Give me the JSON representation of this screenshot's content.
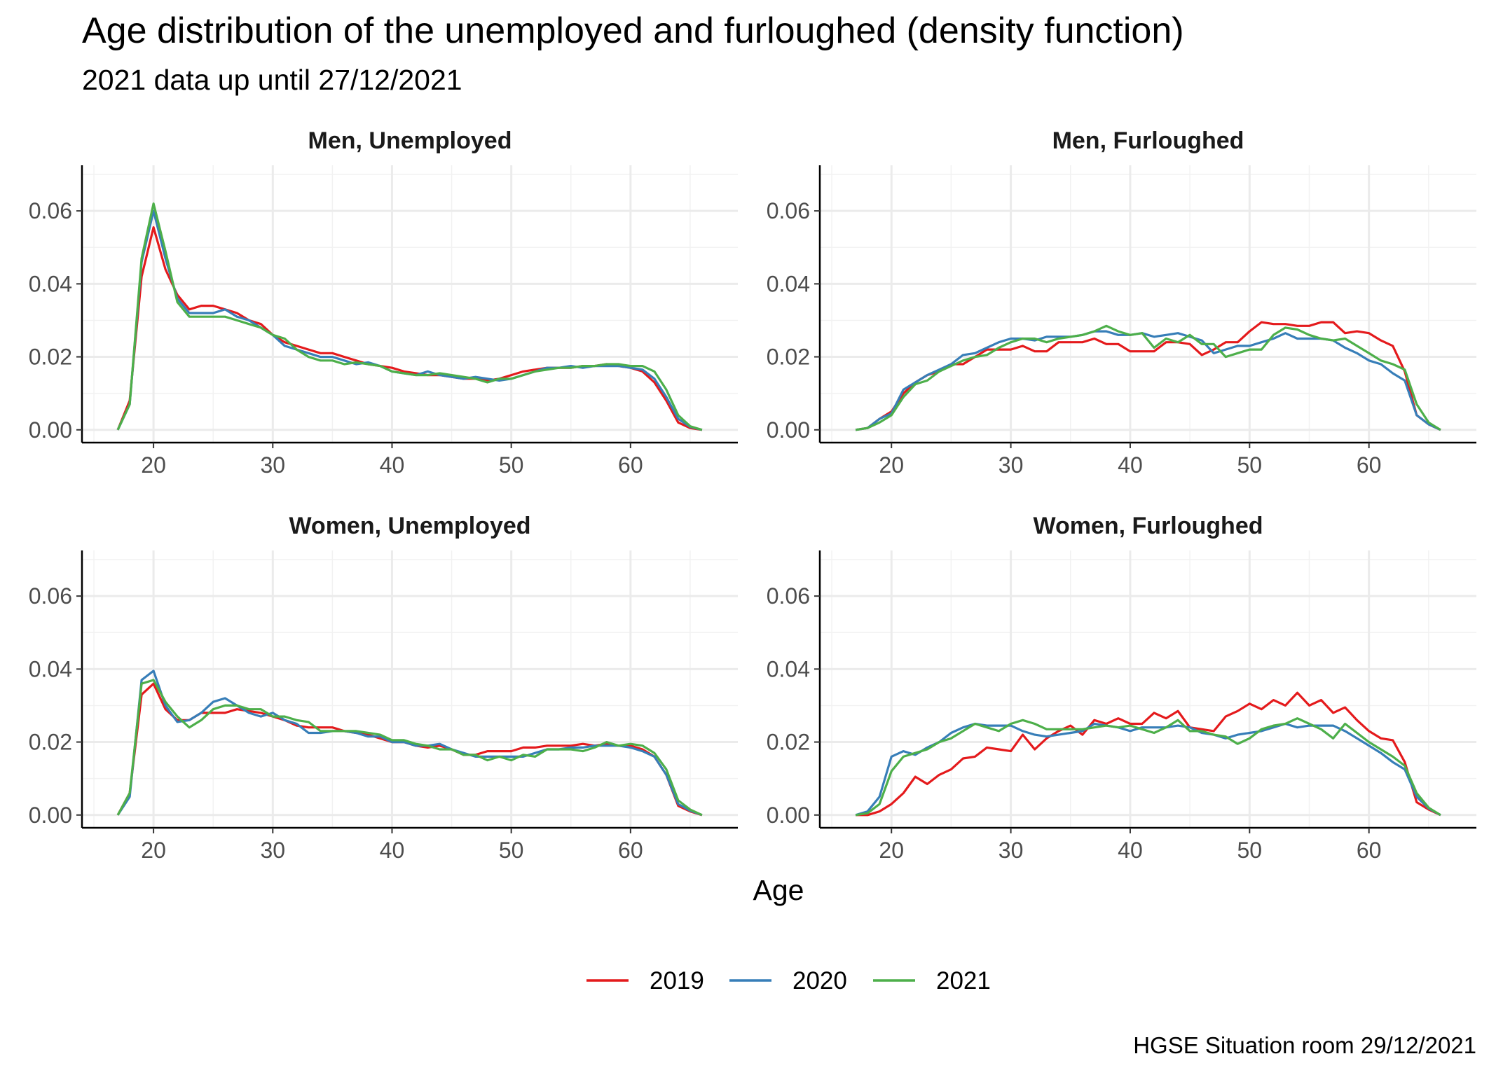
{
  "title": "Age distribution of the unemployed and furloughed (density function)",
  "subtitle": "2021 data up until 27/12/2021",
  "caption": "HGSE Situation room 29/12/2021",
  "colors": {
    "2019": "#e41a1c",
    "2020": "#377eb8",
    "2021": "#4daf4a"
  },
  "chart_data": {
    "type": "line",
    "xlabel": "Age",
    "ylabel": "",
    "xlim": [
      14,
      69
    ],
    "ylim": [
      -0.0035,
      0.0725
    ],
    "x_ticks": [
      20,
      30,
      40,
      50,
      60
    ],
    "x_tick_labels": [
      "20",
      "30",
      "40",
      "50",
      "60"
    ],
    "y_ticks": [
      0,
      0.02,
      0.04,
      0.06
    ],
    "y_tick_labels": [
      "0.00",
      "0.02",
      "0.04",
      "0.06"
    ],
    "grid": true,
    "legend_position": "bottom",
    "legend": [
      "2019",
      "2020",
      "2021"
    ],
    "x": [
      17,
      18,
      19,
      20,
      21,
      22,
      23,
      24,
      25,
      26,
      27,
      28,
      29,
      30,
      31,
      32,
      33,
      34,
      35,
      36,
      37,
      38,
      39,
      40,
      41,
      42,
      43,
      44,
      45,
      46,
      47,
      48,
      49,
      50,
      51,
      52,
      53,
      54,
      55,
      56,
      57,
      58,
      59,
      60,
      61,
      62,
      63,
      64,
      65,
      66
    ],
    "panels": [
      {
        "title": "Men, Unemployed",
        "series": [
          {
            "name": "2019",
            "values": [
              0,
              0.008,
              0.042,
              0.0555,
              0.044,
              0.037,
              0.033,
              0.034,
              0.034,
              0.033,
              0.032,
              0.03,
              0.029,
              0.026,
              0.024,
              0.023,
              0.022,
              0.021,
              0.021,
              0.02,
              0.019,
              0.018,
              0.0175,
              0.017,
              0.016,
              0.0155,
              0.015,
              0.015,
              0.0145,
              0.014,
              0.014,
              0.0135,
              0.014,
              0.015,
              0.016,
              0.0165,
              0.017,
              0.017,
              0.017,
              0.0175,
              0.0175,
              0.018,
              0.0175,
              0.017,
              0.016,
              0.013,
              0.008,
              0.002,
              0.0005,
              0
            ]
          },
          {
            "name": "2020",
            "values": [
              0,
              0.007,
              0.046,
              0.06,
              0.047,
              0.036,
              0.032,
              0.032,
              0.032,
              0.033,
              0.031,
              0.03,
              0.028,
              0.026,
              0.023,
              0.022,
              0.021,
              0.02,
              0.02,
              0.019,
              0.018,
              0.0185,
              0.0175,
              0.016,
              0.0155,
              0.015,
              0.016,
              0.015,
              0.0145,
              0.014,
              0.0145,
              0.014,
              0.0135,
              0.014,
              0.015,
              0.016,
              0.017,
              0.017,
              0.0175,
              0.017,
              0.0175,
              0.0175,
              0.0175,
              0.017,
              0.0165,
              0.014,
              0.009,
              0.003,
              0.0008,
              0
            ]
          },
          {
            "name": "2021",
            "values": [
              0,
              0.007,
              0.047,
              0.062,
              0.049,
              0.035,
              0.031,
              0.031,
              0.031,
              0.031,
              0.03,
              0.029,
              0.028,
              0.026,
              0.025,
              0.022,
              0.02,
              0.019,
              0.019,
              0.018,
              0.0185,
              0.018,
              0.0175,
              0.016,
              0.0155,
              0.015,
              0.015,
              0.0155,
              0.015,
              0.0145,
              0.014,
              0.013,
              0.014,
              0.014,
              0.015,
              0.016,
              0.0165,
              0.017,
              0.017,
              0.0175,
              0.0175,
              0.018,
              0.018,
              0.0175,
              0.0175,
              0.016,
              0.011,
              0.004,
              0.001,
              0
            ]
          }
        ]
      },
      {
        "title": "Men, Furloughed",
        "series": [
          {
            "name": "2019",
            "values": [
              0,
              0.0005,
              0.003,
              0.005,
              0.01,
              0.013,
              0.015,
              0.016,
              0.018,
              0.018,
              0.02,
              0.022,
              0.022,
              0.022,
              0.023,
              0.0215,
              0.0215,
              0.024,
              0.024,
              0.024,
              0.025,
              0.0235,
              0.0235,
              0.0215,
              0.0215,
              0.0215,
              0.024,
              0.024,
              0.0235,
              0.0205,
              0.022,
              0.024,
              0.024,
              0.027,
              0.0295,
              0.029,
              0.029,
              0.0285,
              0.0285,
              0.0295,
              0.0295,
              0.0265,
              0.027,
              0.0265,
              0.0245,
              0.023,
              0.016,
              0.004,
              0.0015,
              0
            ]
          },
          {
            "name": "2020",
            "values": [
              0,
              0.0005,
              0.003,
              0.0045,
              0.011,
              0.013,
              0.015,
              0.0165,
              0.018,
              0.0205,
              0.021,
              0.0225,
              0.024,
              0.025,
              0.025,
              0.0245,
              0.0255,
              0.0255,
              0.0255,
              0.026,
              0.027,
              0.027,
              0.026,
              0.026,
              0.0265,
              0.0255,
              0.026,
              0.0265,
              0.0255,
              0.0245,
              0.021,
              0.022,
              0.023,
              0.023,
              0.024,
              0.025,
              0.0265,
              0.025,
              0.025,
              0.025,
              0.0245,
              0.0225,
              0.021,
              0.019,
              0.018,
              0.0155,
              0.0135,
              0.004,
              0.0015,
              0
            ]
          },
          {
            "name": "2021",
            "values": [
              0,
              0.0005,
              0.002,
              0.004,
              0.009,
              0.0125,
              0.0135,
              0.016,
              0.0175,
              0.019,
              0.02,
              0.0205,
              0.0225,
              0.024,
              0.025,
              0.025,
              0.024,
              0.025,
              0.0255,
              0.026,
              0.027,
              0.0285,
              0.027,
              0.026,
              0.0265,
              0.0225,
              0.025,
              0.024,
              0.026,
              0.0235,
              0.0235,
              0.02,
              0.021,
              0.022,
              0.022,
              0.026,
              0.028,
              0.0275,
              0.026,
              0.025,
              0.0245,
              0.025,
              0.023,
              0.021,
              0.019,
              0.018,
              0.0165,
              0.007,
              0.002,
              0
            ]
          }
        ]
      },
      {
        "title": "Women, Unemployed",
        "series": [
          {
            "name": "2019",
            "values": [
              0,
              0.006,
              0.033,
              0.036,
              0.029,
              0.026,
              0.026,
              0.028,
              0.028,
              0.028,
              0.029,
              0.0285,
              0.028,
              0.027,
              0.026,
              0.0245,
              0.024,
              0.024,
              0.024,
              0.023,
              0.0225,
              0.022,
              0.021,
              0.02,
              0.02,
              0.019,
              0.0185,
              0.019,
              0.018,
              0.0165,
              0.0165,
              0.0175,
              0.0175,
              0.0175,
              0.0185,
              0.0185,
              0.019,
              0.019,
              0.019,
              0.0195,
              0.019,
              0.0195,
              0.019,
              0.019,
              0.018,
              0.016,
              0.011,
              0.0025,
              0.001,
              0
            ]
          },
          {
            "name": "2020",
            "values": [
              0,
              0.005,
              0.037,
              0.0395,
              0.03,
              0.0255,
              0.026,
              0.028,
              0.031,
              0.032,
              0.03,
              0.028,
              0.027,
              0.028,
              0.026,
              0.025,
              0.0225,
              0.0225,
              0.023,
              0.023,
              0.0225,
              0.0215,
              0.0215,
              0.02,
              0.02,
              0.019,
              0.019,
              0.0195,
              0.018,
              0.017,
              0.016,
              0.016,
              0.016,
              0.016,
              0.016,
              0.017,
              0.018,
              0.018,
              0.0185,
              0.0185,
              0.019,
              0.019,
              0.019,
              0.0185,
              0.0175,
              0.016,
              0.011,
              0.003,
              0.0012,
              0
            ]
          },
          {
            "name": "2021",
            "values": [
              0,
              0.006,
              0.036,
              0.037,
              0.031,
              0.027,
              0.024,
              0.026,
              0.029,
              0.03,
              0.03,
              0.029,
              0.029,
              0.027,
              0.027,
              0.026,
              0.0255,
              0.023,
              0.023,
              0.023,
              0.023,
              0.0225,
              0.022,
              0.0205,
              0.0205,
              0.0195,
              0.019,
              0.018,
              0.018,
              0.0165,
              0.0165,
              0.015,
              0.016,
              0.015,
              0.0165,
              0.016,
              0.018,
              0.018,
              0.018,
              0.0175,
              0.0185,
              0.02,
              0.019,
              0.0195,
              0.019,
              0.017,
              0.0125,
              0.004,
              0.0015,
              0
            ]
          }
        ]
      },
      {
        "title": "Women, Furloughed",
        "series": [
          {
            "name": "2019",
            "values": [
              0,
              0,
              0.001,
              0.003,
              0.006,
              0.0105,
              0.0085,
              0.011,
              0.0125,
              0.0155,
              0.016,
              0.0185,
              0.018,
              0.0175,
              0.022,
              0.018,
              0.021,
              0.023,
              0.0245,
              0.022,
              0.026,
              0.025,
              0.0265,
              0.025,
              0.025,
              0.028,
              0.0265,
              0.0285,
              0.024,
              0.0235,
              0.023,
              0.027,
              0.0285,
              0.0305,
              0.029,
              0.0315,
              0.03,
              0.0335,
              0.03,
              0.0315,
              0.028,
              0.0295,
              0.026,
              0.023,
              0.021,
              0.0205,
              0.0145,
              0.0035,
              0.0015,
              0
            ]
          },
          {
            "name": "2020",
            "values": [
              0,
              0.001,
              0.005,
              0.016,
              0.0175,
              0.0165,
              0.0185,
              0.02,
              0.0225,
              0.024,
              0.025,
              0.0245,
              0.0245,
              0.0245,
              0.023,
              0.022,
              0.0215,
              0.022,
              0.0225,
              0.023,
              0.025,
              0.0245,
              0.024,
              0.023,
              0.024,
              0.024,
              0.024,
              0.0245,
              0.024,
              0.0225,
              0.022,
              0.021,
              0.022,
              0.0225,
              0.023,
              0.024,
              0.025,
              0.024,
              0.0245,
              0.0245,
              0.0245,
              0.023,
              0.021,
              0.019,
              0.017,
              0.0145,
              0.0125,
              0.005,
              0.0018,
              0
            ]
          },
          {
            "name": "2021",
            "values": [
              0,
              0.0005,
              0.003,
              0.012,
              0.016,
              0.017,
              0.018,
              0.02,
              0.021,
              0.023,
              0.025,
              0.024,
              0.023,
              0.025,
              0.026,
              0.025,
              0.0235,
              0.0235,
              0.0235,
              0.0235,
              0.024,
              0.0245,
              0.024,
              0.0245,
              0.0235,
              0.0225,
              0.024,
              0.026,
              0.023,
              0.023,
              0.022,
              0.0215,
              0.0195,
              0.021,
              0.0235,
              0.0245,
              0.025,
              0.0265,
              0.025,
              0.0235,
              0.021,
              0.025,
              0.0225,
              0.02,
              0.018,
              0.016,
              0.0135,
              0.006,
              0.002,
              0
            ]
          }
        ]
      }
    ]
  }
}
